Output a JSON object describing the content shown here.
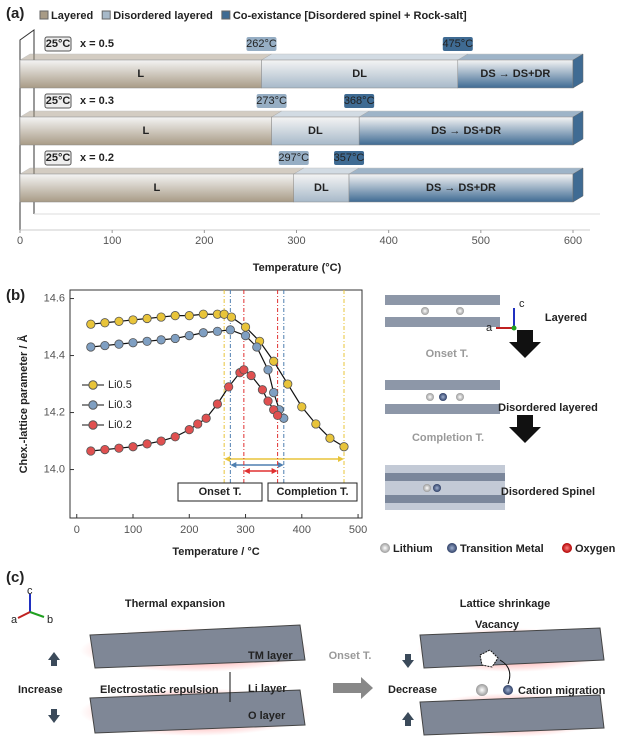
{
  "panels": {
    "a": "(a)",
    "b": "(b)",
    "c": "(c)"
  },
  "chart_data": [
    {
      "type": "hbar3d",
      "categories": [
        "x = 0.5",
        "x = 0.3",
        "x = 0.2"
      ],
      "start_label": "25°C",
      "series": [
        {
          "name": "Layered",
          "color": "#a89b86",
          "values": [
            262,
            273,
            297
          ]
        },
        {
          "name": "Disordered layered",
          "color": "#a7b9c9",
          "values": [
            213,
            95,
            60
          ]
        },
        {
          "name": "Co-existance [Disordered spinel + Rock-salt]",
          "color": "#3f6b93",
          "values": [
            125,
            232,
            243
          ]
        }
      ],
      "segment_labels": [
        "L",
        "DL",
        "DS → DS+DR"
      ],
      "boundary_labels": [
        [
          "262°C",
          "475°C"
        ],
        [
          "273°C",
          "368°C"
        ],
        [
          "297°C",
          "357°C"
        ]
      ],
      "xlim": [
        0,
        600
      ],
      "xticks": [
        0,
        100,
        200,
        300,
        400,
        500,
        600
      ],
      "x_label": "Temperature (°C)"
    },
    {
      "type": "line",
      "x_label": "Temperature / °C",
      "y_label": "Chex.-lattice parameter / Å",
      "xlim": [
        -12,
        507
      ],
      "ylim": [
        13.83,
        14.63
      ],
      "xticks": [
        0,
        100,
        200,
        300,
        400,
        500
      ],
      "yticks": [
        {
          "value": 14.0,
          "label": "14.0"
        },
        {
          "value": 14.2,
          "label": "14.2"
        },
        {
          "value": 14.4,
          "label": "14.4"
        },
        {
          "value": 14.6,
          "label": "14.6"
        }
      ],
      "series": [
        {
          "name": "Li0.5",
          "color": "#e8c43a",
          "x": [
            25,
            50,
            75,
            100,
            125,
            150,
            175,
            200,
            225,
            250,
            262,
            275,
            300,
            325,
            350,
            375,
            400,
            425,
            450,
            475
          ],
          "values": [
            14.51,
            14.515,
            14.52,
            14.525,
            14.53,
            14.535,
            14.54,
            14.54,
            14.545,
            14.545,
            14.545,
            14.535,
            14.5,
            14.45,
            14.38,
            14.3,
            14.22,
            14.16,
            14.11,
            14.08
          ]
        },
        {
          "name": "Li0.3",
          "color": "#7f9fc2",
          "x": [
            25,
            50,
            75,
            100,
            125,
            150,
            175,
            200,
            225,
            250,
            273,
            300,
            320,
            340,
            350,
            360,
            368
          ],
          "values": [
            14.43,
            14.435,
            14.44,
            14.445,
            14.45,
            14.455,
            14.46,
            14.47,
            14.48,
            14.485,
            14.49,
            14.47,
            14.43,
            14.35,
            14.27,
            14.21,
            14.18
          ]
        },
        {
          "name": "Li0.2",
          "color": "#e05050",
          "x": [
            25,
            50,
            75,
            100,
            125,
            150,
            175,
            200,
            215,
            230,
            250,
            270,
            290,
            297,
            310,
            330,
            340,
            350,
            357
          ],
          "values": [
            14.065,
            14.07,
            14.075,
            14.08,
            14.09,
            14.1,
            14.115,
            14.14,
            14.16,
            14.18,
            14.23,
            14.29,
            14.34,
            14.35,
            14.33,
            14.28,
            14.24,
            14.21,
            14.19
          ]
        }
      ],
      "spans": [
        {
          "start": 262,
          "end": 475,
          "color": "#e8c43a"
        },
        {
          "start": 273,
          "end": 368,
          "color": "#4f7fb0"
        },
        {
          "start": 297,
          "end": 357,
          "color": "#e03030"
        }
      ],
      "annotations": [
        "Onset T.",
        "Completion T."
      ]
    }
  ],
  "schematic": {
    "axis_c": "c",
    "axis_a": "a",
    "stages": [
      "Layered",
      "Disordered layered",
      "Disordered Spinel"
    ],
    "transitions": [
      "Onset T.",
      "Completion T."
    ],
    "atoms": [
      "Lithium",
      "Transition Metal",
      "Oxygen"
    ]
  },
  "mechanism": {
    "axes": [
      "c",
      "a",
      "b"
    ],
    "left_title": "Thermal expansion",
    "right_title": "Lattice shrinkage",
    "layers": [
      "TM layer",
      "Li layer",
      "O layer"
    ],
    "increase": "Increase",
    "repulsion": "Electrostatic repulsion",
    "transition": "Onset T.",
    "decrease": "Decrease",
    "vacancy": "Vacancy",
    "migration": "Cation migration"
  }
}
